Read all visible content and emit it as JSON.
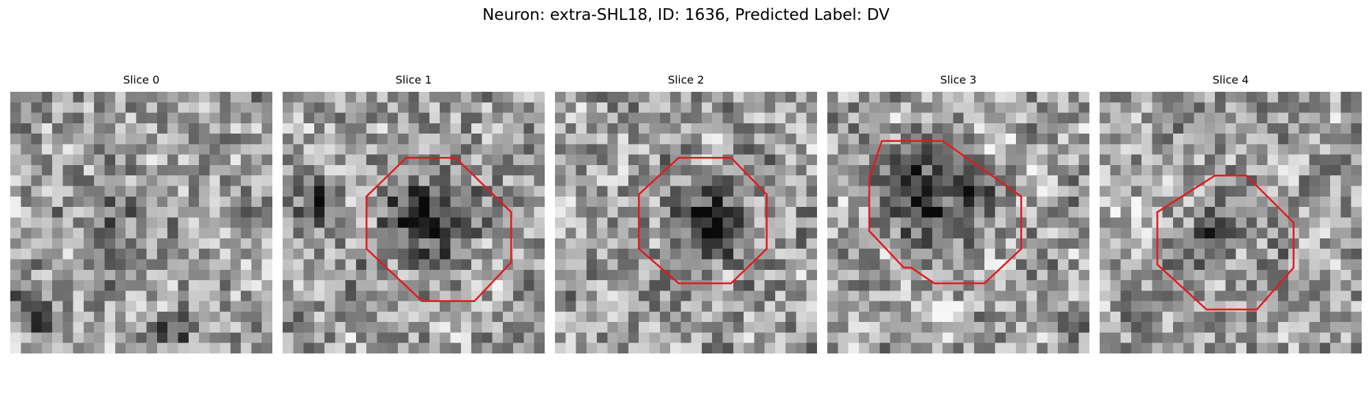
{
  "figure": {
    "title": "Neuron: extra-SHL18, ID: 1636, Predicted Label: DV",
    "outline_color": "#e31a1c",
    "colormap": "grayscale",
    "slices": [
      {
        "label": "Slice 0",
        "has_outline": false,
        "seed": 11
      },
      {
        "label": "Slice 1",
        "has_outline": true,
        "seed": 23
      },
      {
        "label": "Slice 2",
        "has_outline": true,
        "seed": 37
      },
      {
        "label": "Slice 3",
        "has_outline": true,
        "seed": 41
      },
      {
        "label": "Slice 4",
        "has_outline": true,
        "seed": 53
      }
    ]
  }
}
